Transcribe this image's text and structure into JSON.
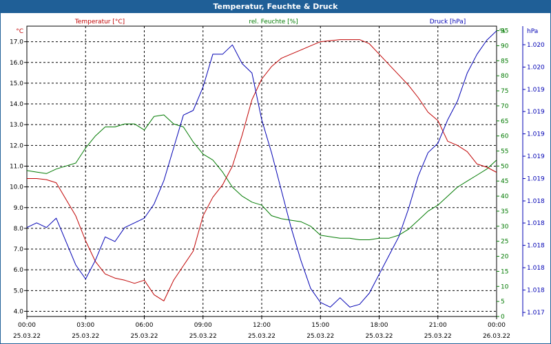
{
  "window": {
    "title": "Temperatur, Feuchte & Druck"
  },
  "colors": {
    "temperature": "#c00000",
    "humidity": "#007a00",
    "pressure": "#0000b4",
    "titlebar": "#1f5f97",
    "grid": "#000000"
  },
  "chart_data": {
    "type": "line",
    "title": "Temperatur, Feuchte & Druck",
    "x_hours": [
      0,
      0.5,
      1,
      1.5,
      2,
      2.5,
      3,
      3.5,
      4,
      4.5,
      5,
      5.5,
      6,
      6.5,
      7,
      7.5,
      8,
      8.5,
      9,
      9.5,
      10,
      10.5,
      11,
      11.5,
      12,
      12.5,
      13,
      13.5,
      14,
      14.5,
      15,
      15.5,
      16,
      16.5,
      17,
      17.5,
      18,
      18.5,
      19,
      19.5,
      20,
      20.5,
      21,
      21.5,
      22,
      22.5,
      23,
      23.5,
      24
    ],
    "x_ticks": [
      {
        "time": "00:00",
        "date": "25.03.22"
      },
      {
        "time": "03:00",
        "date": "25.03.22"
      },
      {
        "time": "06:00",
        "date": "25.03.22"
      },
      {
        "time": "09:00",
        "date": "25.03.22"
      },
      {
        "time": "12:00",
        "date": "25.03.22"
      },
      {
        "time": "15:00",
        "date": "25.03.22"
      },
      {
        "time": "18:00",
        "date": "25.03.22"
      },
      {
        "time": "21:00",
        "date": "25.03.22"
      },
      {
        "time": "00:00",
        "date": "26.03.22"
      }
    ],
    "axes": {
      "left": {
        "label": "Temperatur [°C]",
        "unit": "°C",
        "ylim": [
          3.75,
          17.75
        ],
        "ticks": [
          "4.0",
          "5.0",
          "6.0",
          "7.0",
          "8.0",
          "9.0",
          "10.0",
          "11.0",
          "12.0",
          "13.0",
          "14.0",
          "15.0",
          "16.0",
          "17.0"
        ],
        "tick_values": [
          4,
          5,
          6,
          7,
          8,
          9,
          10,
          11,
          12,
          13,
          14,
          15,
          16,
          17
        ]
      },
      "middle": {
        "label": "rel. Feuchte [%]",
        "unit": "%",
        "ylim": [
          0,
          96.5
        ],
        "ticks": [
          "0",
          "5",
          "10",
          "15",
          "20",
          "25",
          "30",
          "35",
          "40",
          "45",
          "50",
          "55",
          "60",
          "65",
          "70",
          "75",
          "80",
          "85",
          "90",
          "95"
        ],
        "tick_values": [
          0,
          5,
          10,
          15,
          20,
          25,
          30,
          35,
          40,
          45,
          50,
          55,
          60,
          65,
          70,
          75,
          80,
          85,
          90,
          95
        ]
      },
      "right": {
        "label": "Druck [hPa]",
        "unit": "hPa",
        "ylim": [
          1017.25,
          1020.35
        ],
        "ticks": [
          "1.017",
          "1.018",
          "1.018",
          "1.018",
          "1.018",
          "1.018",
          "1.019",
          "1.019",
          "1.019",
          "1.019",
          "1.019",
          "1.020",
          "1.020"
        ],
        "tick_positions_fraction": [
          0.014,
          0.091,
          0.168,
          0.245,
          0.322,
          0.398,
          0.475,
          0.552,
          0.629,
          0.706,
          0.782,
          0.859,
          0.936
        ]
      }
    },
    "series": [
      {
        "name": "Temperatur [°C]",
        "axis": "left",
        "color": "#c00000",
        "values": [
          10.4,
          10.4,
          10.35,
          10.2,
          9.4,
          8.6,
          7.4,
          6.4,
          5.8,
          5.6,
          5.5,
          5.35,
          5.5,
          4.8,
          4.5,
          5.5,
          6.2,
          6.9,
          8.6,
          9.5,
          10.1,
          11.0,
          12.5,
          14.2,
          15.2,
          15.8,
          16.2,
          16.4,
          16.6,
          16.8,
          17.0,
          17.05,
          17.1,
          17.1,
          17.1,
          16.9,
          16.4,
          15.9,
          15.4,
          14.9,
          14.3,
          13.6,
          13.2,
          12.2,
          12.0,
          11.7,
          11.1,
          10.95,
          10.7
        ]
      },
      {
        "name": "rel. Feuchte [%]",
        "axis": "middle",
        "color": "#007a00",
        "values": [
          48.5,
          48,
          47.5,
          49,
          50,
          51,
          56,
          60,
          63,
          63,
          64,
          64,
          62,
          66.5,
          67,
          64,
          63,
          58,
          54,
          52,
          48,
          43,
          40,
          38,
          37,
          33.5,
          32.5,
          32,
          31.5,
          30,
          27,
          26.5,
          26,
          26,
          25.5,
          25.5,
          26,
          26,
          27,
          29,
          32,
          35,
          37,
          40,
          43,
          45,
          47,
          49,
          52
        ]
      },
      {
        "name": "Druck [hPa]",
        "axis": "right",
        "color": "#0000b4",
        "values": [
          1018.2,
          1018.25,
          1018.2,
          1018.3,
          1018.05,
          1017.8,
          1017.65,
          1017.85,
          1018.1,
          1018.05,
          1018.2,
          1018.25,
          1018.3,
          1018.45,
          1018.7,
          1019.05,
          1019.4,
          1019.45,
          1019.7,
          1020.05,
          1020.05,
          1020.15,
          1019.95,
          1019.85,
          1019.35,
          1019.0,
          1018.6,
          1018.2,
          1017.85,
          1017.55,
          1017.4,
          1017.35,
          1017.45,
          1017.35,
          1017.38,
          1017.5,
          1017.7,
          1017.9,
          1018.1,
          1018.4,
          1018.75,
          1019.0,
          1019.1,
          1019.35,
          1019.55,
          1019.85,
          1020.05,
          1020.2,
          1020.3
        ]
      }
    ]
  }
}
